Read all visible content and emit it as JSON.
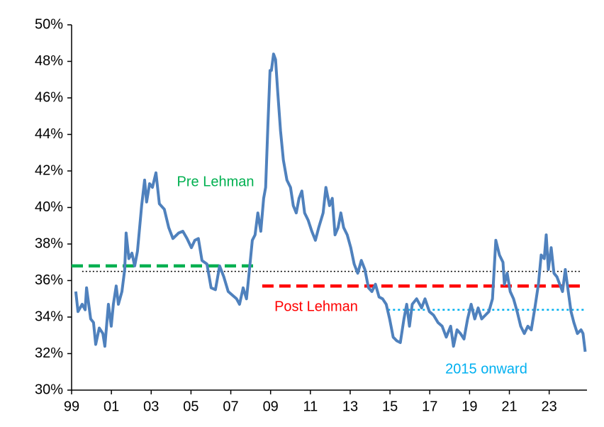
{
  "chart_data": {
    "type": "line",
    "x": [
      1999.21,
      1999.32,
      1999.53,
      1999.68,
      1999.75,
      1999.96,
      2000.1,
      2000.21,
      2000.39,
      2000.57,
      2000.67,
      2000.85,
      2000.99,
      2001.1,
      2001.24,
      2001.35,
      2001.53,
      2001.67,
      2001.74,
      2001.88,
      2002.03,
      2002.17,
      2002.31,
      2002.52,
      2002.67,
      2002.77,
      2002.92,
      2003.06,
      2003.24,
      2003.41,
      2003.66,
      2003.88,
      2004.09,
      2004.38,
      2004.59,
      2004.8,
      2005.02,
      2005.19,
      2005.37,
      2005.55,
      2005.8,
      2006.01,
      2006.23,
      2006.44,
      2006.65,
      2006.87,
      2007.08,
      2007.29,
      2007.44,
      2007.62,
      2007.79,
      2007.94,
      2008.08,
      2008.22,
      2008.36,
      2008.51,
      2008.65,
      2008.75,
      2008.86,
      2008.97,
      2009.04,
      2009.15,
      2009.25,
      2009.36,
      2009.5,
      2009.64,
      2009.82,
      2010.0,
      2010.14,
      2010.29,
      2010.43,
      2010.57,
      2010.71,
      2010.89,
      2011.07,
      2011.25,
      2011.42,
      2011.64,
      2011.78,
      2011.96,
      2012.1,
      2012.24,
      2012.39,
      2012.53,
      2012.67,
      2012.85,
      2013.03,
      2013.2,
      2013.38,
      2013.56,
      2013.74,
      2013.92,
      2014.09,
      2014.27,
      2014.45,
      2014.63,
      2014.81,
      2014.98,
      2015.16,
      2015.34,
      2015.52,
      2015.7,
      2015.84,
      2015.98,
      2016.12,
      2016.34,
      2016.59,
      2016.76,
      2016.98,
      2017.19,
      2017.41,
      2017.62,
      2017.83,
      2018.05,
      2018.19,
      2018.37,
      2018.54,
      2018.72,
      2018.9,
      2019.08,
      2019.26,
      2019.43,
      2019.61,
      2019.79,
      2019.97,
      2020.15,
      2020.32,
      2020.5,
      2020.68,
      2020.75,
      2020.89,
      2021.04,
      2021.21,
      2021.39,
      2021.57,
      2021.75,
      2021.93,
      2022.1,
      2022.28,
      2022.46,
      2022.6,
      2022.75,
      2022.85,
      2022.96,
      2023.1,
      2023.24,
      2023.39,
      2023.53,
      2023.67,
      2023.81,
      2023.96,
      2024.1,
      2024.24,
      2024.42,
      2024.6,
      2024.7,
      2024.81
    ],
    "series": [
      {
        "color": "#4f81bd",
        "values": [
          35.4,
          34.3,
          34.7,
          34.4,
          35.6,
          33.9,
          33.7,
          32.5,
          33.4,
          33.1,
          32.4,
          34.7,
          33.5,
          34.7,
          35.7,
          34.7,
          35.4,
          36.6,
          38.6,
          37.2,
          37.5,
          36.8,
          37.6,
          40.1,
          41.5,
          40.3,
          41.3,
          41.1,
          41.9,
          40.2,
          39.9,
          38.9,
          38.3,
          38.6,
          38.7,
          38.3,
          37.8,
          38.2,
          38.3,
          37.1,
          36.9,
          35.6,
          35.5,
          36.8,
          36.2,
          35.4,
          35.2,
          35.0,
          34.7,
          35.6,
          35.0,
          36.6,
          38.2,
          38.5,
          39.7,
          38.7,
          40.5,
          41.1,
          44.4,
          47.5,
          47.5,
          48.4,
          48.1,
          46.3,
          44.2,
          42.6,
          41.5,
          41.1,
          40.1,
          39.7,
          40.5,
          40.9,
          39.7,
          39.3,
          38.7,
          38.2,
          38.9,
          39.7,
          41.1,
          40.1,
          40.5,
          38.5,
          38.9,
          39.7,
          38.9,
          38.5,
          37.8,
          36.9,
          36.4,
          37.1,
          36.6,
          35.6,
          35.4,
          35.8,
          35.1,
          35.0,
          34.7,
          33.9,
          32.9,
          32.7,
          32.6,
          33.9,
          34.7,
          33.5,
          34.7,
          35.0,
          34.5,
          35.0,
          34.3,
          34.1,
          33.7,
          33.5,
          32.9,
          33.5,
          32.4,
          33.3,
          33.1,
          32.8,
          33.9,
          34.7,
          33.9,
          34.5,
          33.9,
          34.1,
          34.3,
          35.0,
          38.2,
          37.4,
          37.0,
          35.8,
          36.4,
          35.4,
          35.0,
          34.3,
          33.5,
          33.1,
          33.5,
          33.3,
          34.5,
          35.8,
          37.4,
          37.2,
          38.5,
          36.6,
          37.8,
          36.4,
          36.2,
          35.8,
          35.4,
          36.6,
          35.4,
          34.3,
          33.7,
          33.1,
          33.3,
          33.1,
          32.1
        ]
      }
    ],
    "reference_lines": [
      {
        "name": "Pre Lehman",
        "value": 36.8,
        "x": [
          1999.0,
          2008.22
        ],
        "color": "#00b050",
        "style": "dashed"
      },
      {
        "name": "Post Lehman",
        "value": 35.7,
        "x": [
          2008.58,
          2024.81
        ],
        "color": "#ff0000",
        "style": "dashed"
      },
      {
        "name": "2015 onward",
        "value": 34.4,
        "x": [
          2014.9,
          2024.81
        ],
        "color": "#00b0f0",
        "style": "dotted"
      },
      {
        "value": 36.5,
        "x": [
          1999.53,
          2024.6
        ],
        "color": "#000000",
        "style": "fine-dotted"
      }
    ],
    "xlim": [
      1999,
      2024.9
    ],
    "xticks": [
      {
        "value": 1999,
        "label": "99"
      },
      {
        "value": 2001,
        "label": "01"
      },
      {
        "value": 2003,
        "label": "03"
      },
      {
        "value": 2005,
        "label": "05"
      },
      {
        "value": 2007,
        "label": "07"
      },
      {
        "value": 2009,
        "label": "09"
      },
      {
        "value": 2011,
        "label": "11"
      },
      {
        "value": 2013,
        "label": "13"
      },
      {
        "value": 2015,
        "label": "15"
      },
      {
        "value": 2017,
        "label": "17"
      },
      {
        "value": 2019,
        "label": "19"
      },
      {
        "value": 2021,
        "label": "21"
      },
      {
        "value": 2023,
        "label": "23"
      }
    ],
    "ylim": [
      30,
      50
    ],
    "yticks": [
      {
        "value": 30,
        "label": "30%"
      },
      {
        "value": 32,
        "label": "32%"
      },
      {
        "value": 34,
        "label": "34%"
      },
      {
        "value": 36,
        "label": "36%"
      },
      {
        "value": 38,
        "label": "38%"
      },
      {
        "value": 40,
        "label": "40%"
      },
      {
        "value": 42,
        "label": "42%"
      },
      {
        "value": 44,
        "label": "44%"
      },
      {
        "value": 46,
        "label": "46%"
      },
      {
        "value": 48,
        "label": "48%"
      },
      {
        "value": 50,
        "label": "50%"
      }
    ],
    "grid": false
  }
}
